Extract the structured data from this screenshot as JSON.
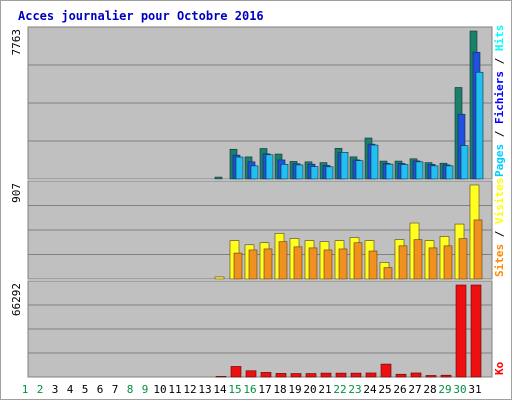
{
  "chart_data": [
    {
      "type": "bar",
      "title": "Acces journalier pour Octobre 2016",
      "ymax_label": "7763",
      "ylim": [
        0,
        7763
      ],
      "legend": [
        "Pages",
        "Fichiers",
        "Hits"
      ],
      "legend_colors": {
        "Pages": "#00ccff",
        "Fichiers": "#0000ff",
        "Hits": "#00ffff",
        "sep": "#ffffff"
      },
      "grid": true,
      "categories": [
        "1",
        "2",
        "3",
        "4",
        "5",
        "6",
        "7",
        "8",
        "9",
        "10",
        "11",
        "12",
        "13",
        "14",
        "15",
        "16",
        "17",
        "18",
        "19",
        "20",
        "21",
        "22",
        "23",
        "24",
        "25",
        "26",
        "27",
        "28",
        "29",
        "30",
        "31"
      ],
      "series": [
        {
          "name": "Hits",
          "color": "#1a8068",
          "values": [
            0,
            0,
            0,
            0,
            0,
            0,
            0,
            0,
            0,
            0,
            0,
            0,
            0,
            100,
            1560,
            1160,
            1600,
            1310,
            920,
            900,
            860,
            1610,
            1160,
            2150,
            940,
            940,
            1060,
            860,
            830,
            4800,
            7763
          ]
        },
        {
          "name": "Fichiers",
          "color": "#2050e0",
          "values": [
            0,
            0,
            0,
            0,
            0,
            0,
            0,
            0,
            0,
            0,
            0,
            0,
            0,
            0,
            1250,
            900,
            1320,
            1000,
            800,
            780,
            710,
            1380,
            1000,
            1830,
            820,
            820,
            950,
            770,
            740,
            3400,
            6650
          ]
        },
        {
          "name": "Pages",
          "color": "#20c0f0",
          "values": [
            0,
            0,
            0,
            0,
            0,
            0,
            0,
            0,
            0,
            0,
            0,
            0,
            0,
            0,
            1150,
            690,
            1270,
            770,
            740,
            650,
            640,
            1400,
            960,
            1780,
            780,
            760,
            900,
            690,
            690,
            1750,
            5600
          ]
        }
      ]
    },
    {
      "type": "bar",
      "ymax_label": "907",
      "ylim": [
        0,
        907
      ],
      "legend": [
        "Sites",
        "Visites"
      ],
      "legend_colors": {
        "Sites": "#ff8800",
        "Visites": "#ffff00",
        "sep": "#ffffff"
      },
      "grid": true,
      "categories": [
        "1",
        "2",
        "3",
        "4",
        "5",
        "6",
        "7",
        "8",
        "9",
        "10",
        "11",
        "12",
        "13",
        "14",
        "15",
        "16",
        "17",
        "18",
        "19",
        "20",
        "21",
        "22",
        "23",
        "24",
        "25",
        "26",
        "27",
        "28",
        "29",
        "30",
        "31"
      ],
      "series": [
        {
          "name": "Visites",
          "color": "#ffff20",
          "values": [
            0,
            0,
            0,
            0,
            0,
            0,
            0,
            0,
            0,
            0,
            0,
            0,
            0,
            20,
            370,
            330,
            350,
            440,
            390,
            370,
            360,
            370,
            400,
            370,
            160,
            380,
            540,
            370,
            410,
            530,
            907
          ]
        },
        {
          "name": "Sites",
          "color": "#f09020",
          "values": [
            0,
            0,
            0,
            0,
            0,
            0,
            0,
            0,
            0,
            0,
            0,
            0,
            0,
            0,
            250,
            280,
            290,
            360,
            310,
            300,
            280,
            290,
            350,
            270,
            110,
            320,
            380,
            300,
            320,
            390,
            570
          ]
        }
      ]
    },
    {
      "type": "bar",
      "ymax_label": "66292",
      "ylim": [
        0,
        66292
      ],
      "legend": [
        "Ko"
      ],
      "legend_colors": {
        "Ko": "#ff0000"
      },
      "grid": true,
      "categories": [
        "1",
        "2",
        "3",
        "4",
        "5",
        "6",
        "7",
        "8",
        "9",
        "10",
        "11",
        "12",
        "13",
        "14",
        "15",
        "16",
        "17",
        "18",
        "19",
        "20",
        "21",
        "22",
        "23",
        "24",
        "25",
        "26",
        "27",
        "28",
        "29",
        "30",
        "31"
      ],
      "series": [
        {
          "name": "Ko",
          "color": "#ee1010",
          "values": [
            0,
            0,
            0,
            0,
            0,
            0,
            0,
            0,
            0,
            0,
            0,
            0,
            0,
            400,
            7600,
            4500,
            3300,
            2600,
            2500,
            2500,
            2800,
            2800,
            2800,
            2900,
            9300,
            2000,
            2900,
            1100,
            1300,
            66292,
            66292
          ]
        }
      ]
    }
  ],
  "weekend_days": [
    "1",
    "2",
    "8",
    "9",
    "15",
    "16",
    "22",
    "23",
    "29",
    "30"
  ],
  "colors": {
    "weekday": "#000000",
    "weekend": "#009040",
    "plot_bg": "#c0c0c0",
    "frame": "#a0a0a0",
    "title": "#0000c0"
  }
}
